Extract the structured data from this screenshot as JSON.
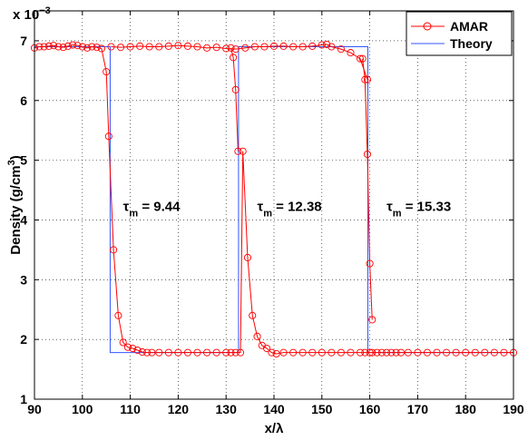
{
  "chart_data": {
    "type": "line",
    "xlabel": "x/λ",
    "ylabel": "Density (g/cm³)",
    "ylabel_parts": {
      "base": "Density (g/cm",
      "sup": "3",
      "close": ")"
    },
    "exponent_label": {
      "base": "x 10",
      "sup": "−3"
    },
    "xlim": [
      90,
      190
    ],
    "ylim": [
      1,
      7.5
    ],
    "xticks": [
      "90",
      "100",
      "110",
      "120",
      "130",
      "140",
      "150",
      "160",
      "170",
      "180",
      "190"
    ],
    "yticks": [
      "1",
      "2",
      "3",
      "4",
      "5",
      "6",
      "7"
    ],
    "grid": true,
    "legend_position": "top-right",
    "legend": [
      "AMAR",
      "Theory"
    ],
    "colors": {
      "AMAR": "#ff0000",
      "Theory": "#3355ff"
    },
    "annotations": [
      {
        "text_main": "τ",
        "text_sub": "m",
        "text_value": " = 9.44",
        "x": 108.5,
        "y": 4.15
      },
      {
        "text_main": "τ",
        "text_sub": "m",
        "text_value": " = 12.38",
        "x": 136.5,
        "y": 4.15
      },
      {
        "text_main": "τ",
        "text_sub": "m",
        "text_value": " = 15.33",
        "x": 163.5,
        "y": 4.15
      }
    ],
    "series": [
      {
        "name": "AMAR",
        "marker": "circle",
        "x": [
          90,
          91,
          92,
          93,
          94,
          95,
          96,
          97,
          98,
          99,
          100,
          101,
          102,
          103,
          104,
          105,
          105.5,
          106.5,
          107.5,
          108.5,
          109.5,
          110.5,
          111.5,
          112.5,
          113.5,
          114.5,
          116,
          118,
          120,
          122,
          124,
          126,
          128,
          130,
          131,
          132,
          133,
          133.5,
          134.5,
          135.5,
          136.5,
          137.5,
          138.5,
          139.5,
          140.5,
          142,
          144,
          146,
          148,
          150,
          152,
          154,
          156,
          158,
          159,
          160,
          160.5,
          161.5,
          162.5,
          163.5,
          164.5,
          165.5,
          166.5,
          168,
          170,
          172,
          174,
          176,
          178,
          180,
          182,
          184,
          186,
          188,
          190
        ],
        "y": [
          6.88,
          6.9,
          6.9,
          6.91,
          6.92,
          6.9,
          6.89,
          6.91,
          6.93,
          6.92,
          6.9,
          6.88,
          6.9,
          6.89,
          6.87,
          6.48,
          5.4,
          3.5,
          2.4,
          1.95,
          1.87,
          1.85,
          1.82,
          1.79,
          1.78,
          1.78,
          1.78,
          1.78,
          1.78,
          1.78,
          1.78,
          1.78,
          1.78,
          1.78,
          1.78,
          1.78,
          1.78,
          5.15,
          3.37,
          2.4,
          2.05,
          1.9,
          1.85,
          1.78,
          1.76,
          1.78,
          1.78,
          1.78,
          1.78,
          1.78,
          1.78,
          1.78,
          1.78,
          1.78,
          1.78,
          1.78,
          1.78,
          1.78,
          1.78,
          1.78,
          1.78,
          1.78,
          1.78,
          1.78,
          1.78,
          1.78,
          1.78,
          1.78,
          1.78,
          1.78,
          1.78,
          1.78,
          1.78,
          1.78,
          1.78
        ],
        "overlay_top": {
          "x": [
            106,
            108,
            110,
            112,
            114,
            116,
            118,
            120,
            122,
            124,
            126,
            128,
            130,
            132,
            134,
            136,
            138,
            140,
            142,
            144,
            146,
            148,
            150,
            151,
            152,
            154,
            156,
            158,
            159.5
          ],
          "y": [
            6.9,
            6.89,
            6.9,
            6.91,
            6.9,
            6.9,
            6.91,
            6.92,
            6.91,
            6.9,
            6.88,
            6.89,
            6.87,
            6.86,
            6.88,
            6.9,
            6.9,
            6.91,
            6.91,
            6.9,
            6.9,
            6.91,
            6.93,
            6.94,
            6.9,
            6.86,
            6.8,
            6.7,
            6.35
          ]
        },
        "overlay_mid": {
          "x": [
            131,
            131.5,
            132,
            132.5
          ],
          "y": [
            6.88,
            6.72,
            6.18,
            5.15
          ]
        },
        "overlay_right": {
          "x": [
            158.5,
            159,
            159.5,
            160,
            160.5
          ],
          "y": [
            6.7,
            6.35,
            5.1,
            3.27,
            2.33
          ]
        }
      },
      {
        "name": "Theory",
        "x": [
          90,
          105.8,
          105.8,
          132.6,
          132.6,
          159.6,
          159.6,
          190
        ],
        "y": [
          6.9,
          6.9,
          1.78,
          1.78,
          6.9,
          6.9,
          1.78,
          1.78
        ]
      }
    ]
  }
}
